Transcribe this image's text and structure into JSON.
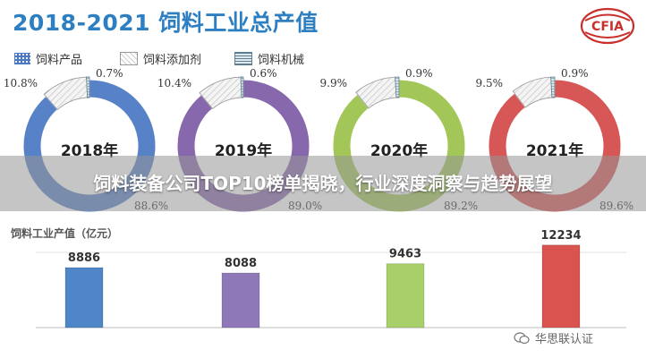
{
  "title": "2018-2021 饲料工业总产值",
  "logo_text": "CFIA",
  "legend": [
    {
      "label": "饲料产品",
      "pattern": "dots",
      "color": "#4a78c4"
    },
    {
      "label": "饲料添加剂",
      "pattern": "hatch",
      "color": "#9e9e9e"
    },
    {
      "label": "饲料机械",
      "pattern": "lines",
      "color": "#5d7f8f"
    }
  ],
  "overlay_text": "饲料装备公司TOP10榜单揭晓，行业深度洞察与趋势展望",
  "bar_chart_title": "饲料工业产值（亿元）",
  "watermark": "华思联认证",
  "chart_data": [
    {
      "type": "pie",
      "center_label": "2018年",
      "color": "#4a78c4",
      "slices": [
        {
          "label": "饲料产品",
          "value": 88.6,
          "display": "88.6%"
        },
        {
          "label": "饲料添加剂",
          "value": 10.8,
          "display": "10.8%"
        },
        {
          "label": "饲料机械",
          "value": 0.7,
          "display": "0.7%"
        }
      ]
    },
    {
      "type": "pie",
      "center_label": "2019年",
      "color": "#7d5ca6",
      "slices": [
        {
          "label": "饲料产品",
          "value": 89.0,
          "display": "89.0%"
        },
        {
          "label": "饲料添加剂",
          "value": 10.4,
          "display": "10.4%"
        },
        {
          "label": "饲料机械",
          "value": 0.6,
          "display": "0.6%"
        }
      ]
    },
    {
      "type": "pie",
      "center_label": "2020年",
      "color": "#9cc24a",
      "slices": [
        {
          "label": "饲料产品",
          "value": 89.2,
          "display": "89.2%"
        },
        {
          "label": "饲料添加剂",
          "value": 9.9,
          "display": "9.9%"
        },
        {
          "label": "饲料机械",
          "value": 0.9,
          "display": "0.9%"
        }
      ]
    },
    {
      "type": "pie",
      "center_label": "2021年",
      "color": "#d44848",
      "slices": [
        {
          "label": "饲料产品",
          "value": 89.6,
          "display": "89.6%"
        },
        {
          "label": "饲料添加剂",
          "value": 9.5,
          "display": "9.5%"
        },
        {
          "label": "饲料机械",
          "value": 0.9,
          "display": "0.9%"
        }
      ]
    },
    {
      "type": "bar",
      "title": "饲料工业产值（亿元）",
      "values": [
        8886,
        8088,
        9463,
        12234
      ],
      "colors": [
        "#4e86c8",
        "#8e78b8",
        "#a8cf6a",
        "#d9534f"
      ],
      "ylim": [
        0,
        13000
      ]
    }
  ]
}
